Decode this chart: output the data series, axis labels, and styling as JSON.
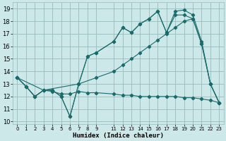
{
  "xlabel": "Humidex (Indice chaleur)",
  "bg_color": "#cce8e8",
  "grid_color": "#99bbbb",
  "line_color": "#1a6b6b",
  "xlim": [
    -0.5,
    23.5
  ],
  "ylim": [
    9.8,
    19.5
  ],
  "xticks": [
    0,
    1,
    2,
    3,
    4,
    5,
    6,
    7,
    8,
    9,
    11,
    12,
    13,
    14,
    15,
    16,
    17,
    18,
    19,
    20,
    21,
    22,
    23
  ],
  "yticks": [
    10,
    11,
    12,
    13,
    14,
    15,
    16,
    17,
    18,
    19
  ],
  "line_zigzag_x": [
    0,
    1,
    2,
    3,
    4,
    5,
    6,
    7,
    8,
    9,
    11,
    12,
    13,
    14,
    15,
    16,
    17,
    18,
    19,
    20,
    21,
    22,
    23
  ],
  "line_zigzag_y": [
    13.5,
    12.8,
    12.0,
    12.5,
    12.5,
    12.0,
    10.4,
    13.0,
    15.2,
    15.5,
    16.4,
    17.5,
    17.1,
    17.8,
    18.2,
    18.8,
    17.1,
    18.5,
    18.5,
    18.2,
    16.2,
    13.0,
    11.5
  ],
  "line_diagonal_x": [
    0,
    3,
    7,
    9,
    11,
    12,
    13,
    14,
    15,
    16,
    17,
    18,
    19,
    20,
    21,
    22,
    23
  ],
  "line_diagonal_y": [
    13.5,
    12.5,
    13.0,
    13.5,
    14.0,
    14.5,
    15.0,
    15.5,
    16.0,
    16.5,
    17.0,
    17.5,
    18.0,
    18.2,
    16.2,
    13.0,
    11.5
  ],
  "line_flat_x": [
    0,
    1,
    2,
    3,
    4,
    5,
    6,
    7,
    8,
    9,
    11,
    12,
    13,
    14,
    15,
    16,
    17,
    18,
    19,
    20,
    21,
    22,
    23
  ],
  "line_flat_y": [
    13.5,
    12.8,
    12.0,
    12.5,
    12.4,
    12.2,
    12.2,
    12.4,
    12.3,
    12.3,
    12.2,
    12.1,
    12.1,
    12.0,
    12.0,
    12.0,
    12.0,
    12.0,
    11.9,
    11.9,
    11.8,
    11.7,
    11.5
  ],
  "line_peak_x": [
    0,
    1,
    2,
    3,
    4,
    5,
    6,
    7,
    8,
    9,
    11,
    12,
    13,
    14,
    15,
    16,
    17,
    18,
    19,
    20,
    21,
    22,
    23
  ],
  "line_peak_y": [
    13.5,
    12.8,
    12.0,
    12.5,
    12.5,
    12.0,
    10.4,
    13.0,
    15.2,
    15.5,
    16.4,
    17.5,
    17.1,
    17.8,
    18.2,
    18.8,
    17.1,
    18.8,
    18.9,
    18.5,
    16.4,
    13.0,
    11.5
  ]
}
